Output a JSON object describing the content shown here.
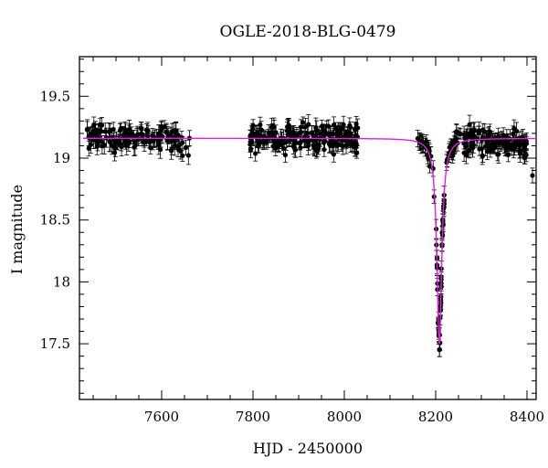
{
  "chart_data": {
    "type": "scatter",
    "title": "OGLE-2018-BLG-0479",
    "xlabel": "HJD - 2450000",
    "ylabel": "I magnitude",
    "xlim": [
      7420,
      8420
    ],
    "ylim": [
      19.82,
      17.05
    ],
    "x_ticks": [
      7600,
      7800,
      8000,
      8200,
      8400
    ],
    "y_ticks": [
      17.5,
      18,
      18.5,
      19,
      19.5
    ],
    "x_tick_labels": [
      "7600",
      "7800",
      "8000",
      "8200",
      "8400"
    ],
    "y_tick_labels": [
      "17.5",
      "18",
      "18.5",
      "19",
      "19.5"
    ],
    "grid": false,
    "legend": "none",
    "colors": {
      "points": "#000000",
      "model": "#e020e0",
      "axes": "#000000",
      "background": "#ffffff"
    },
    "model": {
      "baseline": 19.16,
      "peak": 17.5,
      "t0": 8208,
      "width": 6.5,
      "x_start": 7428,
      "x_end": 8420
    },
    "series": [
      {
        "type": "points",
        "seasons": [
          {
            "x_start": 7434,
            "x_end": 7665,
            "mean": 19.16,
            "scatter": 0.1,
            "count": 140
          },
          {
            "x_start": 7793,
            "x_end": 8030,
            "mean": 19.16,
            "scatter": 0.1,
            "count": 210
          },
          {
            "x_start": 8160,
            "x_end": 8197,
            "mean": 19.06,
            "scatter": 0.08,
            "count": 24
          },
          {
            "x_start": 8200,
            "x_end": 8220,
            "mean": 18.0,
            "scatter": 0.1,
            "count": 44
          },
          {
            "x_start": 8222,
            "x_end": 8400,
            "mean": 19.12,
            "scatter": 0.1,
            "count": 150
          }
        ],
        "error_bar": 0.06,
        "outliers": [
          {
            "x": 8412,
            "y": 18.86
          }
        ]
      }
    ]
  }
}
